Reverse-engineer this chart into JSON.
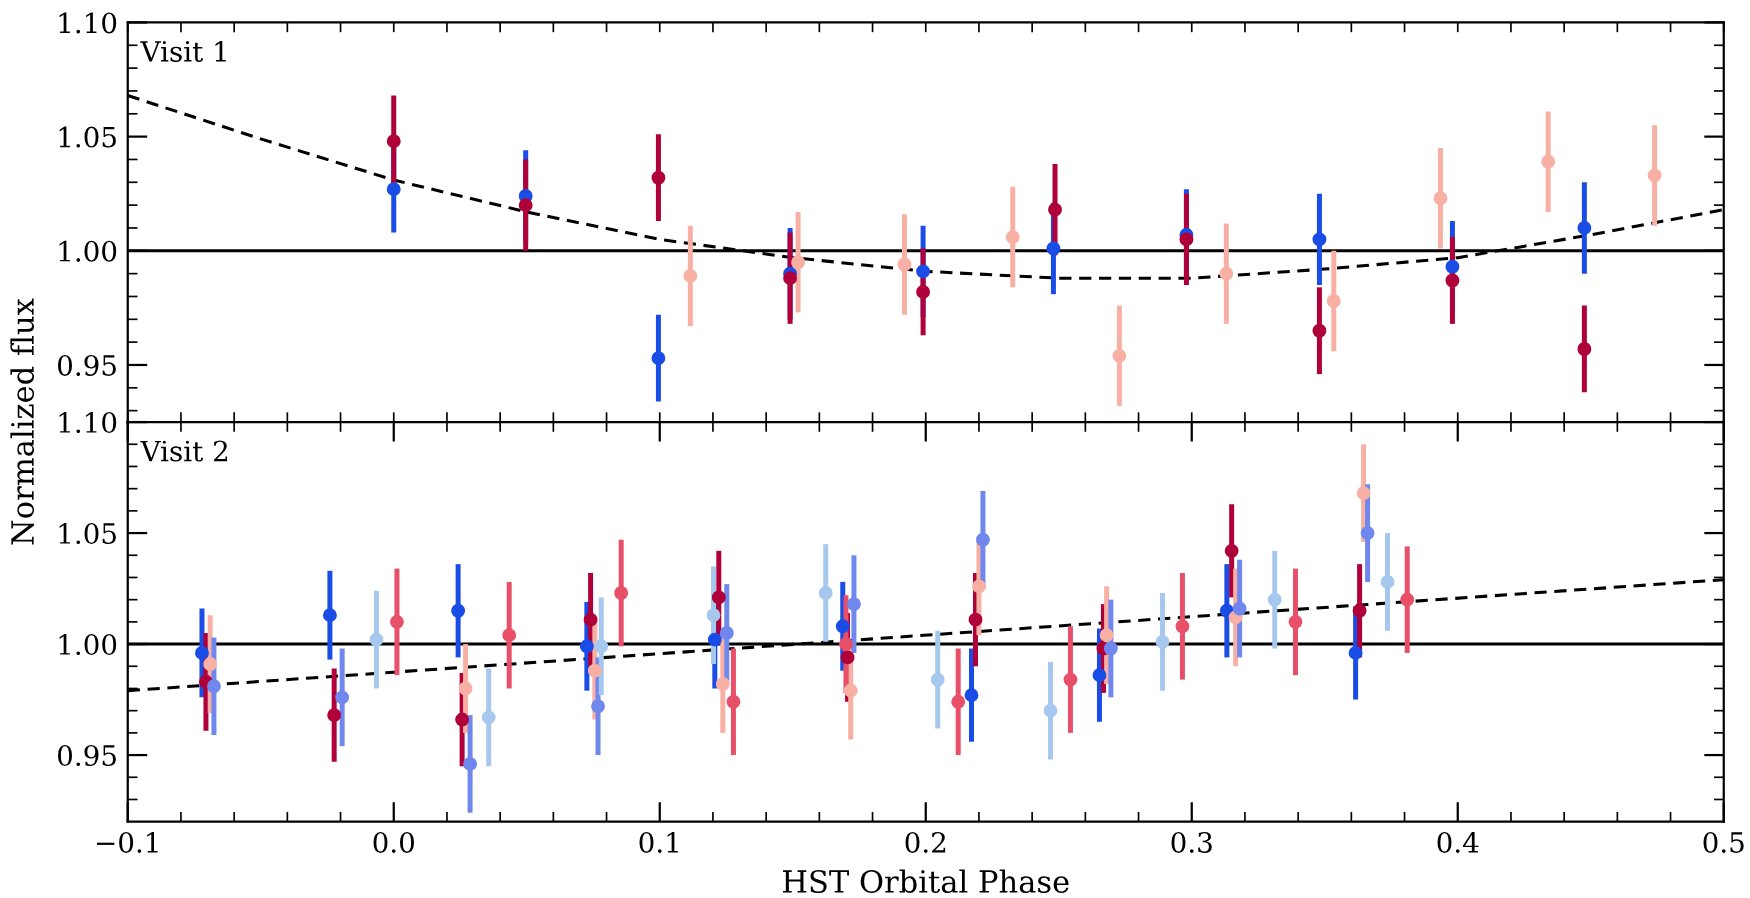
{
  "chart_data": [
    {
      "type": "scatter",
      "ylabel": "Normalized flux",
      "annotations": [
        "Visit 1"
      ],
      "tick_labels": "y",
      "marker": "circle",
      "grid": false,
      "xlim": [
        -0.1,
        0.5
      ],
      "ylim": [
        0.925,
        1.1
      ],
      "xticks": [
        {
          "value": -0.1,
          "label": null
        },
        {
          "value": -0.08,
          "label": null
        },
        {
          "value": -0.06,
          "label": null
        },
        {
          "value": -0.04,
          "label": null
        },
        {
          "value": -0.02,
          "label": null
        },
        {
          "value": 0.0,
          "label": null
        },
        {
          "value": 0.02,
          "label": null
        },
        {
          "value": 0.04,
          "label": null
        },
        {
          "value": 0.06,
          "label": null
        },
        {
          "value": 0.08,
          "label": null
        },
        {
          "value": 0.1,
          "label": null
        },
        {
          "value": 0.12,
          "label": null
        },
        {
          "value": 0.14,
          "label": null
        },
        {
          "value": 0.16,
          "label": null
        },
        {
          "value": 0.18,
          "label": null
        },
        {
          "value": 0.2,
          "label": null
        },
        {
          "value": 0.22,
          "label": null
        },
        {
          "value": 0.24,
          "label": null
        },
        {
          "value": 0.26,
          "label": null
        },
        {
          "value": 0.28,
          "label": null
        },
        {
          "value": 0.3,
          "label": null
        },
        {
          "value": 0.32,
          "label": null
        },
        {
          "value": 0.34,
          "label": null
        },
        {
          "value": 0.36,
          "label": null
        },
        {
          "value": 0.38,
          "label": null
        },
        {
          "value": 0.4,
          "label": null
        },
        {
          "value": 0.42,
          "label": null
        },
        {
          "value": 0.44,
          "label": null
        },
        {
          "value": 0.46,
          "label": null
        },
        {
          "value": 0.48,
          "label": null
        },
        {
          "value": 0.5,
          "label": null
        }
      ],
      "yticks": [
        {
          "value": 0.93,
          "label": null
        },
        {
          "value": 0.94,
          "label": null
        },
        {
          "value": 0.95,
          "label": "0.95"
        },
        {
          "value": 0.96,
          "label": null
        },
        {
          "value": 0.97,
          "label": null
        },
        {
          "value": 0.98,
          "label": null
        },
        {
          "value": 0.99,
          "label": null
        },
        {
          "value": 1.0,
          "label": "1.00"
        },
        {
          "value": 1.01,
          "label": null
        },
        {
          "value": 1.02,
          "label": null
        },
        {
          "value": 1.03,
          "label": null
        },
        {
          "value": 1.04,
          "label": null
        },
        {
          "value": 1.05,
          "label": "1.05"
        },
        {
          "value": 1.06,
          "label": null
        },
        {
          "value": 1.07,
          "label": null
        },
        {
          "value": 1.08,
          "label": null
        },
        {
          "value": 1.09,
          "label": null
        },
        {
          "value": 1.1,
          "label": "1.10"
        }
      ],
      "ref_lines": [
        {
          "axis": "y",
          "value": 1.0,
          "color": "#000000",
          "line_style": "solid"
        }
      ],
      "series": [
        {
          "color": "#1a4de6",
          "x": [
            0.0,
            0.0496,
            0.0995,
            0.149,
            0.199,
            0.248,
            0.298,
            0.348,
            0.398,
            0.4476
          ],
          "values": [
            1.027,
            1.024,
            0.953,
            0.99,
            0.991,
            1.001,
            1.007,
            1.005,
            0.993,
            1.01
          ],
          "errors": [
            0.019,
            0.02,
            0.019,
            0.02,
            0.02,
            0.02,
            0.02,
            0.02,
            0.02,
            0.02
          ]
        },
        {
          "color": "#b0003a",
          "x": [
            0.0,
            0.0496,
            0.0995,
            0.149,
            0.199,
            0.2486,
            0.298,
            0.348,
            0.398,
            0.4476
          ],
          "values": [
            1.048,
            1.02,
            1.032,
            0.988,
            0.982,
            1.018,
            1.005,
            0.965,
            0.987,
            0.957
          ],
          "errors": [
            0.02,
            0.02,
            0.019,
            0.02,
            0.019,
            0.02,
            0.02,
            0.019,
            0.019,
            0.019
          ]
        },
        {
          "color": "#f9b0a4",
          "x": [
            0.1115,
            0.152,
            0.192,
            0.2327,
            0.2728,
            0.313,
            0.3534,
            0.3935,
            0.434,
            0.474
          ],
          "values": [
            0.989,
            0.995,
            0.994,
            1.006,
            0.954,
            0.99,
            0.978,
            1.023,
            1.039,
            1.033
          ],
          "errors": [
            0.022,
            0.022,
            0.022,
            0.022,
            0.022,
            0.022,
            0.022,
            0.022,
            0.022,
            0.022
          ]
        },
        {
          "type": "line",
          "color": "#000000",
          "line_style": "dashed",
          "marker": "none",
          "x": [
            -0.1,
            -0.05,
            0.0,
            0.05,
            0.1,
            0.15,
            0.2,
            0.25,
            0.3,
            0.35,
            0.4,
            0.45,
            0.5
          ],
          "values": [
            1.068,
            1.049,
            1.031,
            1.017,
            1.005,
            0.997,
            0.991,
            0.988,
            0.988,
            0.992,
            0.997,
            1.007,
            1.018
          ]
        }
      ]
    },
    {
      "type": "scatter",
      "xlabel": "HST Orbital Phase",
      "annotations": [
        "Visit 2"
      ],
      "marker": "circle",
      "grid": false,
      "xlim": [
        -0.1,
        0.5
      ],
      "ylim": [
        0.92,
        1.1
      ],
      "xticks": [
        {
          "value": -0.1,
          "label": "−0.1"
        },
        {
          "value": -0.08,
          "label": null
        },
        {
          "value": -0.06,
          "label": null
        },
        {
          "value": -0.04,
          "label": null
        },
        {
          "value": -0.02,
          "label": null
        },
        {
          "value": 0.0,
          "label": "0.0"
        },
        {
          "value": 0.02,
          "label": null
        },
        {
          "value": 0.04,
          "label": null
        },
        {
          "value": 0.06,
          "label": null
        },
        {
          "value": 0.08,
          "label": null
        },
        {
          "value": 0.1,
          "label": "0.1"
        },
        {
          "value": 0.12,
          "label": null
        },
        {
          "value": 0.14,
          "label": null
        },
        {
          "value": 0.16,
          "label": null
        },
        {
          "value": 0.18,
          "label": null
        },
        {
          "value": 0.2,
          "label": "0.2"
        },
        {
          "value": 0.22,
          "label": null
        },
        {
          "value": 0.24,
          "label": null
        },
        {
          "value": 0.26,
          "label": null
        },
        {
          "value": 0.28,
          "label": null
        },
        {
          "value": 0.3,
          "label": "0.3"
        },
        {
          "value": 0.32,
          "label": null
        },
        {
          "value": 0.34,
          "label": null
        },
        {
          "value": 0.36,
          "label": null
        },
        {
          "value": 0.38,
          "label": null
        },
        {
          "value": 0.4,
          "label": "0.4"
        },
        {
          "value": 0.42,
          "label": null
        },
        {
          "value": 0.44,
          "label": null
        },
        {
          "value": 0.46,
          "label": null
        },
        {
          "value": 0.48,
          "label": null
        },
        {
          "value": 0.5,
          "label": "0.5"
        }
      ],
      "yticks": [
        {
          "value": 0.93,
          "label": null
        },
        {
          "value": 0.94,
          "label": null
        },
        {
          "value": 0.95,
          "label": "0.95"
        },
        {
          "value": 0.96,
          "label": null
        },
        {
          "value": 0.97,
          "label": null
        },
        {
          "value": 0.98,
          "label": null
        },
        {
          "value": 0.99,
          "label": null
        },
        {
          "value": 1.0,
          "label": "1.00"
        },
        {
          "value": 1.01,
          "label": null
        },
        {
          "value": 1.02,
          "label": null
        },
        {
          "value": 1.03,
          "label": null
        },
        {
          "value": 1.04,
          "label": null
        },
        {
          "value": 1.05,
          "label": "1.05"
        },
        {
          "value": 1.06,
          "label": null
        },
        {
          "value": 1.07,
          "label": null
        },
        {
          "value": 1.08,
          "label": null
        },
        {
          "value": 1.09,
          "label": null
        },
        {
          "value": 1.1,
          "label": "1.10"
        }
      ],
      "ref_lines": [
        {
          "axis": "y",
          "value": 1.0,
          "color": "#000000",
          "line_style": "solid"
        }
      ],
      "series": [
        {
          "color": "#1a4de6",
          "x": [
            -0.0721,
            -0.024,
            0.0242,
            0.0726,
            0.1207,
            0.1688,
            0.2172,
            0.2653,
            0.3132,
            0.3616
          ],
          "values": [
            0.996,
            1.013,
            1.015,
            0.999,
            1.002,
            1.008,
            0.977,
            0.986,
            1.015,
            0.996
          ],
          "errors": [
            0.02,
            0.02,
            0.021,
            0.02,
            0.022,
            0.02,
            0.021,
            0.021,
            0.021,
            0.021
          ]
        },
        {
          "color": "#b0003a",
          "x": [
            -0.0706,
            -0.0224,
            0.0257,
            0.074,
            0.1222,
            0.1706,
            0.2187,
            0.2668,
            0.315,
            0.3631
          ],
          "values": [
            0.983,
            0.968,
            0.966,
            1.011,
            1.021,
            0.994,
            1.011,
            0.998,
            1.042,
            1.015
          ],
          "errors": [
            0.022,
            0.021,
            0.021,
            0.021,
            0.021,
            0.02,
            0.021,
            0.02,
            0.021,
            0.021
          ]
        },
        {
          "color": "#f9b0a4",
          "x": [
            -0.069,
            0.027,
            0.0756,
            0.1237,
            0.1718,
            0.22,
            0.268,
            0.3165,
            0.3646
          ],
          "values": [
            0.991,
            0.98,
            0.988,
            0.982,
            0.979,
            1.026,
            1.004,
            1.012,
            1.068
          ],
          "errors": [
            0.022,
            0.02,
            0.022,
            0.022,
            0.022,
            0.022,
            0.022,
            0.022,
            0.022
          ]
        },
        {
          "color": "#7088ee",
          "x": [
            -0.0676,
            -0.0194,
            0.0287,
            0.0768,
            0.1252,
            0.173,
            0.2215,
            0.2696,
            0.318,
            0.3661
          ],
          "values": [
            0.981,
            0.976,
            0.946,
            0.972,
            1.005,
            1.018,
            1.047,
            0.998,
            1.016,
            1.05
          ],
          "errors": [
            0.022,
            0.022,
            0.022,
            0.022,
            0.022,
            0.022,
            0.022,
            0.022,
            0.022,
            0.022
          ]
        },
        {
          "color": "#a6c8ee",
          "x": [
            -0.0065,
            0.0357,
            0.078,
            0.1202,
            0.1624,
            0.2045,
            0.2469,
            0.289,
            0.3312,
            0.3736
          ],
          "values": [
            1.002,
            0.967,
            0.999,
            1.013,
            1.023,
            0.984,
            0.97,
            1.001,
            1.02,
            1.028
          ],
          "errors": [
            0.022,
            0.022,
            0.022,
            0.022,
            0.022,
            0.022,
            0.022,
            0.022,
            0.022,
            0.022
          ]
        },
        {
          "color": "#e8506a",
          "x": [
            0.0012,
            0.0434,
            0.0855,
            0.1277,
            0.17,
            0.2122,
            0.2544,
            0.2965,
            0.339,
            0.381
          ],
          "values": [
            1.01,
            1.004,
            1.023,
            0.974,
            1.0,
            0.974,
            0.984,
            1.008,
            1.01,
            1.02
          ],
          "errors": [
            0.024,
            0.024,
            0.024,
            0.024,
            0.022,
            0.024,
            0.024,
            0.024,
            0.024,
            0.024
          ]
        },
        {
          "type": "line",
          "color": "#000000",
          "line_style": "dashed",
          "marker": "none",
          "x": [
            -0.1,
            0.5
          ],
          "values": [
            0.979,
            1.029
          ]
        }
      ]
    }
  ]
}
